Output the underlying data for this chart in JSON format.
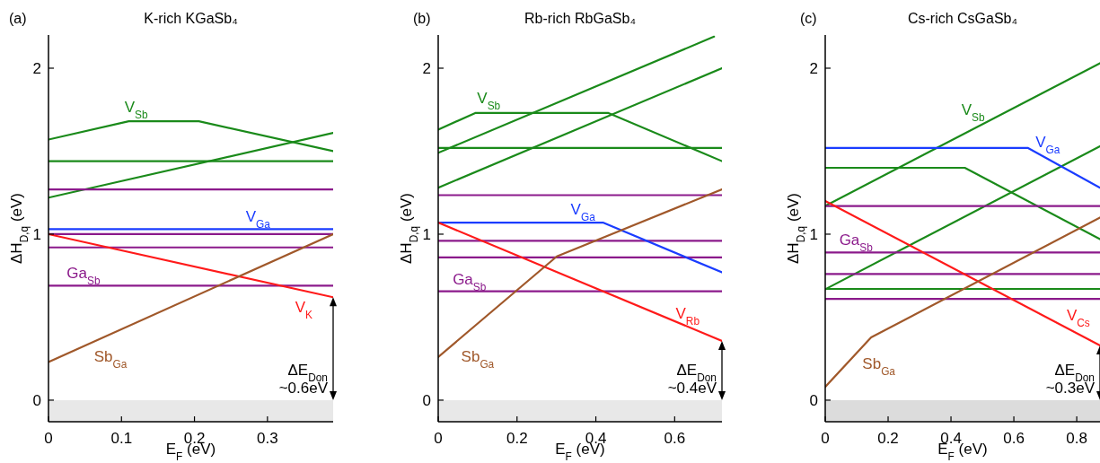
{
  "chart_data": [
    {
      "type": "line",
      "title": "K-rich KGaSb₄",
      "xlabel": "E$_{F}$ (eV)",
      "ylabel": "ΔH$_{D,q}$ (eV)",
      "xlim": [
        0,
        0.39
      ],
      "xticks": [
        0,
        0.1,
        0.2,
        0.3
      ],
      "ylim": [
        -0.13,
        2.2
      ],
      "yticks": [
        0,
        1,
        2
      ],
      "bands": [
        {
          "axis": "y",
          "from": -0.13,
          "to": 0,
          "color": "#e8e8e8"
        }
      ],
      "series": [
        {
          "name": "V$_{Sb}$",
          "color": "#1a8a1a",
          "x": [
            0,
            0.11,
            0.206,
            0.39
          ],
          "values": [
            1.57,
            1.68,
            1.68,
            1.5
          ]
        },
        {
          "color": "#1a8a1a",
          "x": [
            0,
            0.39
          ],
          "values": [
            1.44,
            1.44
          ]
        },
        {
          "color": "#1a8a1a",
          "x": [
            0,
            0.39
          ],
          "values": [
            1.22,
            1.61
          ]
        },
        {
          "color": "#8b1a8b",
          "x": [
            0,
            0.39
          ],
          "values": [
            1.27,
            1.27
          ]
        },
        {
          "color": "#8b1a8b",
          "x": [
            0,
            0.39
          ],
          "values": [
            1.0,
            1.0
          ]
        },
        {
          "color": "#8b1a8b",
          "x": [
            0,
            0.39
          ],
          "values": [
            0.92,
            0.92
          ]
        },
        {
          "name": "Ga$_{Sb}$",
          "color": "#8b1a8b",
          "x": [
            0,
            0.39
          ],
          "values": [
            0.69,
            0.69
          ]
        },
        {
          "name": "V$_{Ga}$",
          "color": "#1a3cff",
          "x": [
            0,
            0.39
          ],
          "values": [
            1.03,
            1.03
          ]
        },
        {
          "name": "V$_{K}$",
          "color": "#ff1a1a",
          "x": [
            0,
            0.39
          ],
          "values": [
            1.0,
            0.62
          ]
        },
        {
          "name": "Sb$_{Ga}$",
          "color": "#a0582a",
          "x": [
            0,
            0.39
          ],
          "values": [
            0.23,
            1.0
          ]
        }
      ],
      "annotations": [
        "(a)",
        "ΔE$_{Don}$\n~0.6eV"
      ]
    },
    {
      "type": "line",
      "title": "Rb-rich RbGaSb₄",
      "xlabel": "E$_{F}$ (eV)",
      "ylabel": "ΔH$_{D,q}$ (eV)",
      "xlim": [
        0,
        0.72
      ],
      "xticks": [
        0,
        0.2,
        0.4,
        0.6
      ],
      "ylim": [
        -0.13,
        2.2
      ],
      "yticks": [
        0,
        1,
        2
      ],
      "bands": [
        {
          "axis": "y",
          "from": -0.13,
          "to": 0,
          "color": "#e8e8e8"
        }
      ],
      "series": [
        {
          "name": "V$_{Sb}$",
          "color": "#1a8a1a",
          "x": [
            0,
            0.094,
            0.432,
            0.72
          ],
          "values": [
            1.63,
            1.73,
            1.73,
            1.44
          ]
        },
        {
          "color": "#1a8a1a",
          "x": [
            0,
            0.7
          ],
          "values": [
            1.49,
            2.19
          ]
        },
        {
          "color": "#1a8a1a",
          "x": [
            0,
            0.72
          ],
          "values": [
            1.28,
            2.0
          ]
        },
        {
          "color": "#1a8a1a",
          "x": [
            0,
            0.72
          ],
          "values": [
            1.52,
            1.52
          ]
        },
        {
          "color": "#8b1a8b",
          "x": [
            0,
            0.72
          ],
          "values": [
            1.235,
            1.235
          ]
        },
        {
          "color": "#8b1a8b",
          "x": [
            0,
            0.72
          ],
          "values": [
            0.96,
            0.96
          ]
        },
        {
          "color": "#8b1a8b",
          "x": [
            0,
            0.72
          ],
          "values": [
            0.86,
            0.86
          ]
        },
        {
          "name": "Ga$_{Sb}$",
          "color": "#8b1a8b",
          "x": [
            0,
            0.72
          ],
          "values": [
            0.656,
            0.656
          ]
        },
        {
          "name": "V$_{Ga}$",
          "color": "#1a3cff",
          "x": [
            0,
            0.418,
            0.72
          ],
          "values": [
            1.07,
            1.07,
            0.77
          ]
        },
        {
          "name": "V$_{Rb}$",
          "color": "#ff1a1a",
          "x": [
            0,
            0.72
          ],
          "values": [
            1.07,
            0.357
          ]
        },
        {
          "name": "Sb$_{Ga}$",
          "color": "#a0582a",
          "x": [
            0,
            0.301,
            0.72
          ],
          "values": [
            0.26,
            0.866,
            1.27
          ]
        }
      ],
      "annotations": [
        "(b)",
        "ΔE$_{Don}$\n~0.4eV"
      ]
    },
    {
      "type": "line",
      "title": "Cs-rich CsGaSb₄",
      "xlabel": "E$_{F}$ (eV)",
      "ylabel": "ΔH$_{D,q}$ (eV)",
      "xlim": [
        0,
        0.874
      ],
      "xticks": [
        0,
        0.2,
        0.4,
        0.6,
        0.8
      ],
      "ylim": [
        -0.13,
        2.2
      ],
      "yticks": [
        0,
        1,
        2
      ],
      "bands": [
        {
          "axis": "y",
          "from": -0.13,
          "to": 0,
          "color": "#dcdcdc"
        }
      ],
      "series": [
        {
          "name": "V$_{Sb}$",
          "color": "#1a8a1a",
          "x": [
            0,
            0.874
          ],
          "values": [
            1.17,
            2.03
          ]
        },
        {
          "color": "#1a8a1a",
          "x": [
            0,
            0.874
          ],
          "values": [
            0.668,
            1.53
          ]
        },
        {
          "color": "#1a8a1a",
          "x": [
            0,
            0.444,
            0.874
          ],
          "values": [
            1.4,
            1.4,
            0.97
          ]
        },
        {
          "color": "#1a8a1a",
          "x": [
            0,
            0.874
          ],
          "values": [
            0.67,
            0.67
          ]
        },
        {
          "name": "V$_{Ga}$",
          "color": "#1a3cff",
          "x": [
            0,
            0.644,
            0.874
          ],
          "values": [
            1.52,
            1.52,
            1.28
          ]
        },
        {
          "name": "Ga$_{Sb}$",
          "color": "#8b1a8b",
          "x": [
            0,
            0.874
          ],
          "values": [
            1.17,
            1.17
          ]
        },
        {
          "color": "#8b1a8b",
          "x": [
            0,
            0.874
          ],
          "values": [
            0.89,
            0.89
          ]
        },
        {
          "color": "#8b1a8b",
          "x": [
            0,
            0.874
          ],
          "values": [
            0.76,
            0.76
          ]
        },
        {
          "color": "#8b1a8b",
          "x": [
            0,
            0.874
          ],
          "values": [
            0.61,
            0.61
          ]
        },
        {
          "name": "V$_{Cs}$",
          "color": "#ff1a1a",
          "x": [
            0,
            0.874
          ],
          "values": [
            1.2,
            0.33
          ]
        },
        {
          "name": "Sb$_{Ga}$",
          "color": "#a0582a",
          "x": [
            0,
            0.146,
            0.874
          ],
          "values": [
            0.08,
            0.378,
            1.1
          ]
        }
      ],
      "annotations": [
        "(c)",
        "ΔE$_{Don}$\n~0.3eV"
      ]
    }
  ]
}
